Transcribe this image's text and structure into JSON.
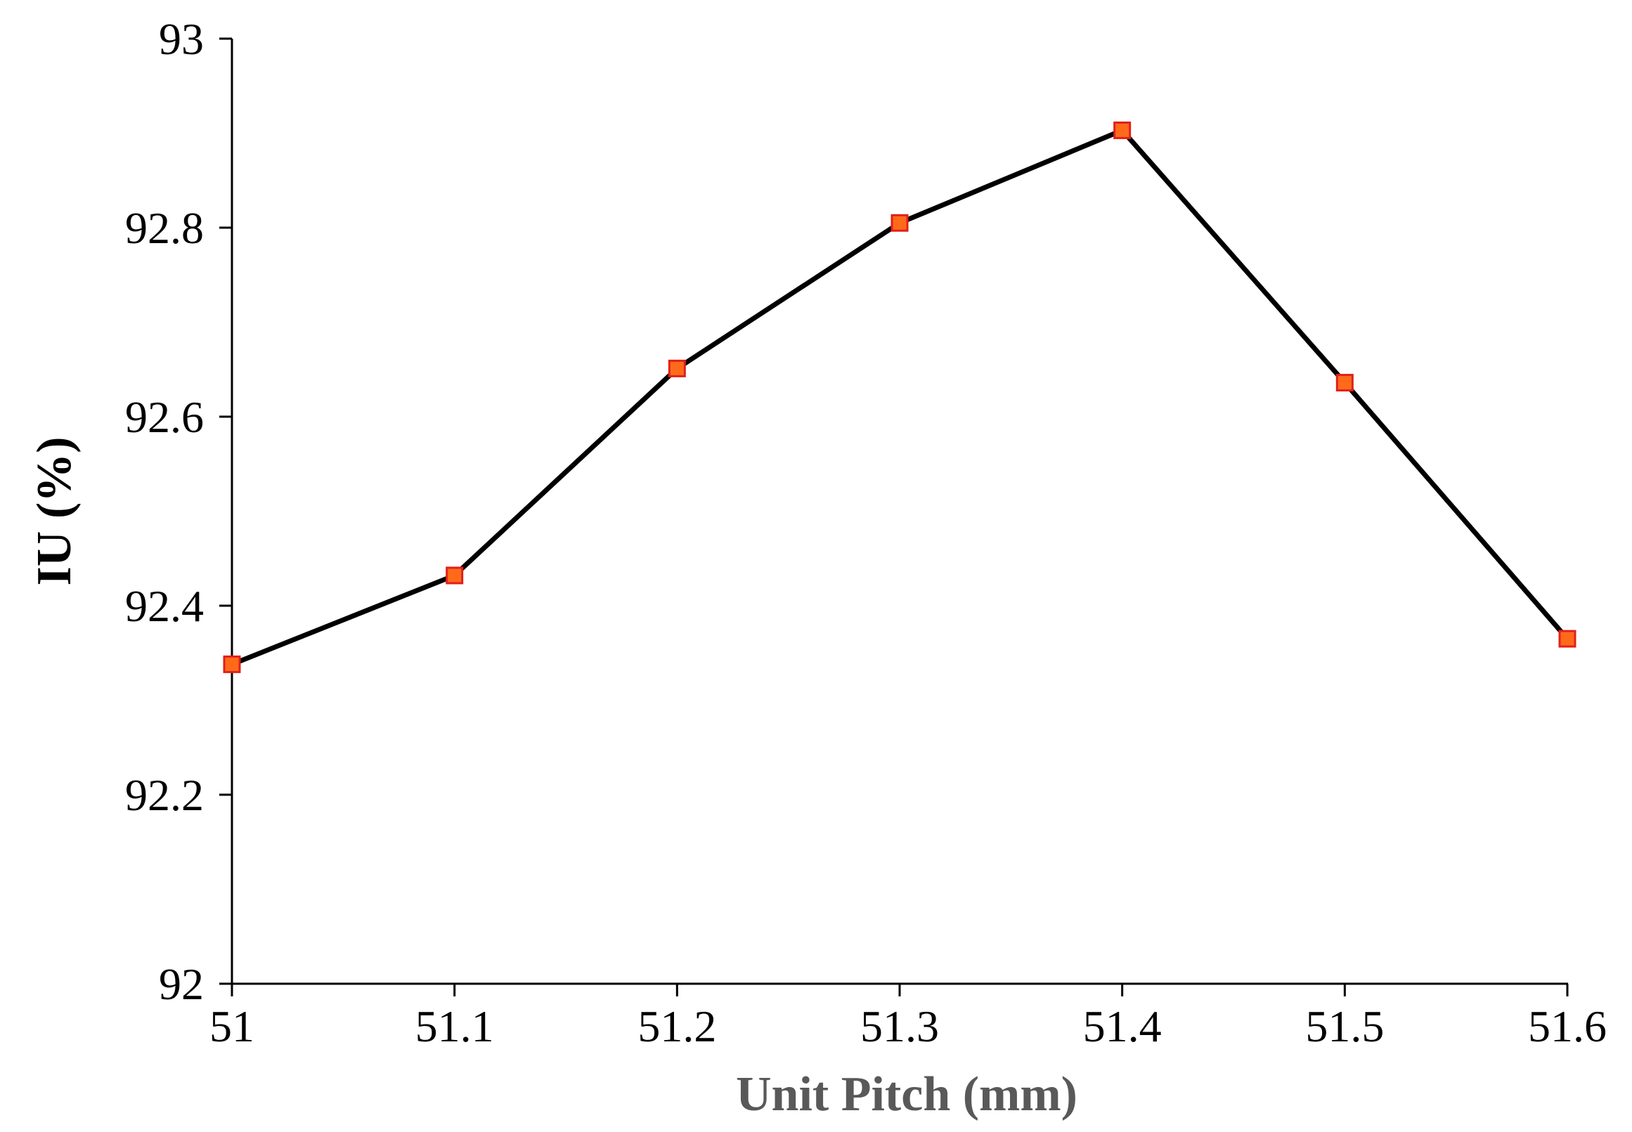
{
  "chart_data": {
    "type": "line",
    "title": "",
    "xlabel": "Unit Pitch (mm)",
    "ylabel": "IU (%)",
    "xlim": [
      51,
      51.6
    ],
    "ylim": [
      92,
      93
    ],
    "xticks": [
      "51",
      "51.1",
      "51.2",
      "51.3",
      "51.4",
      "51.5",
      "51.6"
    ],
    "yticks": [
      "92",
      "92.2",
      "92.4",
      "92.6",
      "92.8",
      "93"
    ],
    "grid": false,
    "series": [
      {
        "x": [
          51,
          51.1,
          51.2,
          51.3,
          51.4,
          51.5,
          51.6
        ],
        "y": [
          92.338,
          92.432,
          92.651,
          92.805,
          92.903,
          92.636,
          92.365
        ]
      }
    ]
  },
  "colors": {
    "line": "#000000",
    "marker_fill": "#ff6a1a",
    "marker_stroke": "#e0201a",
    "axis": "#000000",
    "xlabel": "#595959",
    "ylabel": "#000000"
  }
}
